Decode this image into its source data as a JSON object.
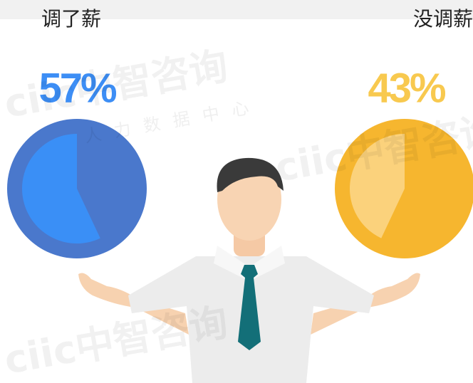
{
  "chart_data": [
    {
      "type": "pie",
      "title": "调了薪",
      "values": [
        57
      ],
      "value_labels": [
        "57%"
      ],
      "color": "#4a78cc",
      "highlight_color": "#3a8ff6",
      "label_color": "#3d8ef5"
    },
    {
      "type": "pie",
      "title": "没调薪",
      "values": [
        43
      ],
      "value_labels": [
        "43%"
      ],
      "color": "#f6b62f",
      "highlight_color": "#fbd27c",
      "label_color": "#f8c94f"
    }
  ],
  "watermark": {
    "brand": "ciic中智咨询",
    "department": "人力数据中心"
  }
}
